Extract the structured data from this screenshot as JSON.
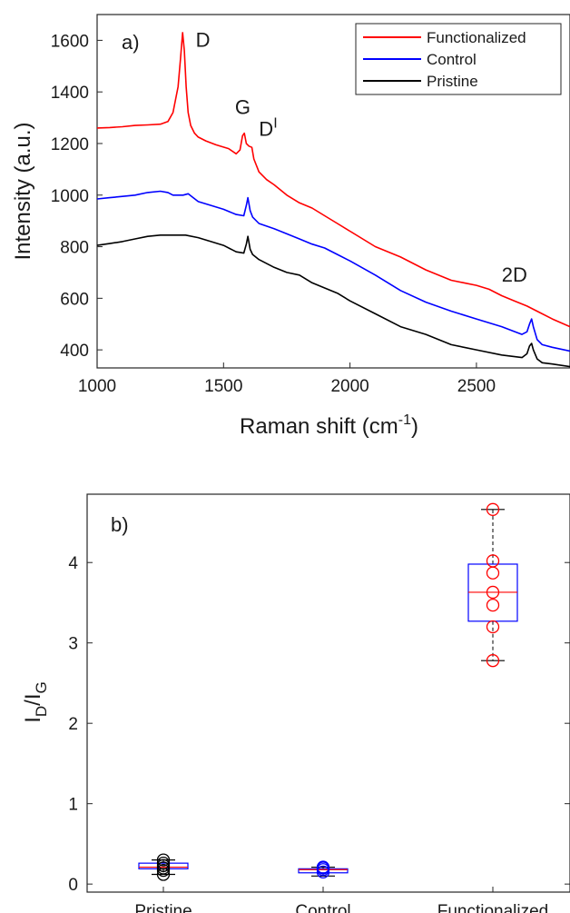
{
  "chart_data": [
    {
      "panel": "a)",
      "type": "line",
      "xlabel": "Raman shift (cm",
      "xlabel_sup": "-1",
      "xlabel_tail": ")",
      "ylabel": "Intensity (a.u.)",
      "xlim": [
        1000,
        2870
      ],
      "ylim": [
        330,
        1700
      ],
      "xticks": [
        1000,
        1500,
        2000,
        2500
      ],
      "yticks": [
        400,
        600,
        800,
        1000,
        1200,
        1400,
        1600
      ],
      "legend_position": "top-right",
      "annotations": [
        {
          "text": "D",
          "x": 1390,
          "y": 1575
        },
        {
          "text": "G",
          "x": 1545,
          "y": 1315
        },
        {
          "text": "D",
          "sup": "I",
          "x": 1640,
          "y": 1230
        },
        {
          "text": "2D",
          "x": 2600,
          "y": 665
        }
      ],
      "series": [
        {
          "name": "Functionalized",
          "color": "#ff0000",
          "x": [
            1000,
            1050,
            1100,
            1150,
            1200,
            1250,
            1280,
            1300,
            1320,
            1330,
            1338,
            1345,
            1352,
            1360,
            1370,
            1385,
            1400,
            1430,
            1470,
            1520,
            1550,
            1565,
            1575,
            1582,
            1590,
            1600,
            1612,
            1620,
            1640,
            1670,
            1700,
            1750,
            1800,
            1850,
            1900,
            1950,
            2000,
            2100,
            2200,
            2300,
            2400,
            2450,
            2500,
            2550,
            2600,
            2650,
            2700,
            2750,
            2800,
            2870
          ],
          "y": [
            1260,
            1262,
            1265,
            1270,
            1272,
            1275,
            1285,
            1320,
            1420,
            1530,
            1630,
            1560,
            1420,
            1320,
            1270,
            1240,
            1225,
            1210,
            1195,
            1180,
            1160,
            1175,
            1230,
            1240,
            1200,
            1190,
            1185,
            1140,
            1090,
            1060,
            1040,
            1000,
            970,
            950,
            920,
            890,
            860,
            800,
            760,
            710,
            670,
            660,
            650,
            635,
            610,
            590,
            570,
            545,
            520,
            490
          ]
        },
        {
          "name": "Control",
          "color": "#0000ff",
          "x": [
            1000,
            1050,
            1100,
            1150,
            1200,
            1250,
            1280,
            1300,
            1340,
            1360,
            1380,
            1400,
            1450,
            1500,
            1550,
            1580,
            1590,
            1596,
            1605,
            1615,
            1640,
            1700,
            1750,
            1800,
            1850,
            1900,
            1950,
            2000,
            2100,
            2200,
            2300,
            2400,
            2500,
            2600,
            2680,
            2700,
            2710,
            2718,
            2725,
            2740,
            2760,
            2800,
            2870
          ],
          "y": [
            985,
            990,
            995,
            1000,
            1010,
            1015,
            1010,
            1000,
            1000,
            1005,
            990,
            975,
            960,
            945,
            925,
            920,
            960,
            990,
            940,
            915,
            890,
            870,
            850,
            830,
            810,
            795,
            770,
            745,
            690,
            630,
            585,
            550,
            520,
            490,
            460,
            470,
            500,
            520,
            490,
            440,
            420,
            410,
            395
          ]
        },
        {
          "name": "Pristine",
          "color": "#000000",
          "x": [
            1000,
            1050,
            1100,
            1150,
            1200,
            1250,
            1300,
            1350,
            1400,
            1450,
            1500,
            1550,
            1580,
            1590,
            1596,
            1605,
            1615,
            1640,
            1700,
            1750,
            1800,
            1850,
            1900,
            1950,
            2000,
            2100,
            2200,
            2300,
            2400,
            2500,
            2600,
            2680,
            2700,
            2710,
            2718,
            2725,
            2740,
            2760,
            2800,
            2870
          ],
          "y": [
            805,
            812,
            820,
            830,
            840,
            845,
            845,
            845,
            835,
            820,
            805,
            780,
            775,
            810,
            840,
            790,
            770,
            750,
            720,
            700,
            690,
            660,
            640,
            620,
            590,
            540,
            490,
            460,
            420,
            400,
            380,
            370,
            385,
            415,
            425,
            400,
            365,
            350,
            345,
            335
          ]
        }
      ]
    },
    {
      "panel": "b)",
      "type": "box",
      "ylabel": "I",
      "ylabel_sub1": "D",
      "ylabel_sep": "/I",
      "ylabel_sub2": "G",
      "ylim": [
        -0.1,
        4.85
      ],
      "yticks": [
        0,
        1,
        2,
        3,
        4
      ],
      "categories": [
        "Pristine",
        "Control",
        "Functionalized"
      ],
      "boxes": [
        {
          "category": "Pristine",
          "q1": 0.19,
          "median": 0.21,
          "q3": 0.26,
          "whisker_low": 0.12,
          "whisker_high": 0.3,
          "point_color": "#000000",
          "points": [
            0.12,
            0.17,
            0.2,
            0.23,
            0.26,
            0.3
          ]
        },
        {
          "category": "Control",
          "q1": 0.14,
          "median": 0.18,
          "q3": 0.19,
          "whisker_low": 0.1,
          "whisker_high": 0.21,
          "point_color": "#0000ff",
          "points": [
            0.15,
            0.18,
            0.2,
            0.21
          ]
        },
        {
          "category": "Functionalized",
          "q1": 3.27,
          "median": 3.63,
          "q3": 3.98,
          "whisker_low": 2.78,
          "whisker_high": 4.66,
          "point_color": "#ff0000",
          "points": [
            2.78,
            3.2,
            3.47,
            3.63,
            3.87,
            4.02,
            4.66
          ]
        }
      ]
    }
  ]
}
